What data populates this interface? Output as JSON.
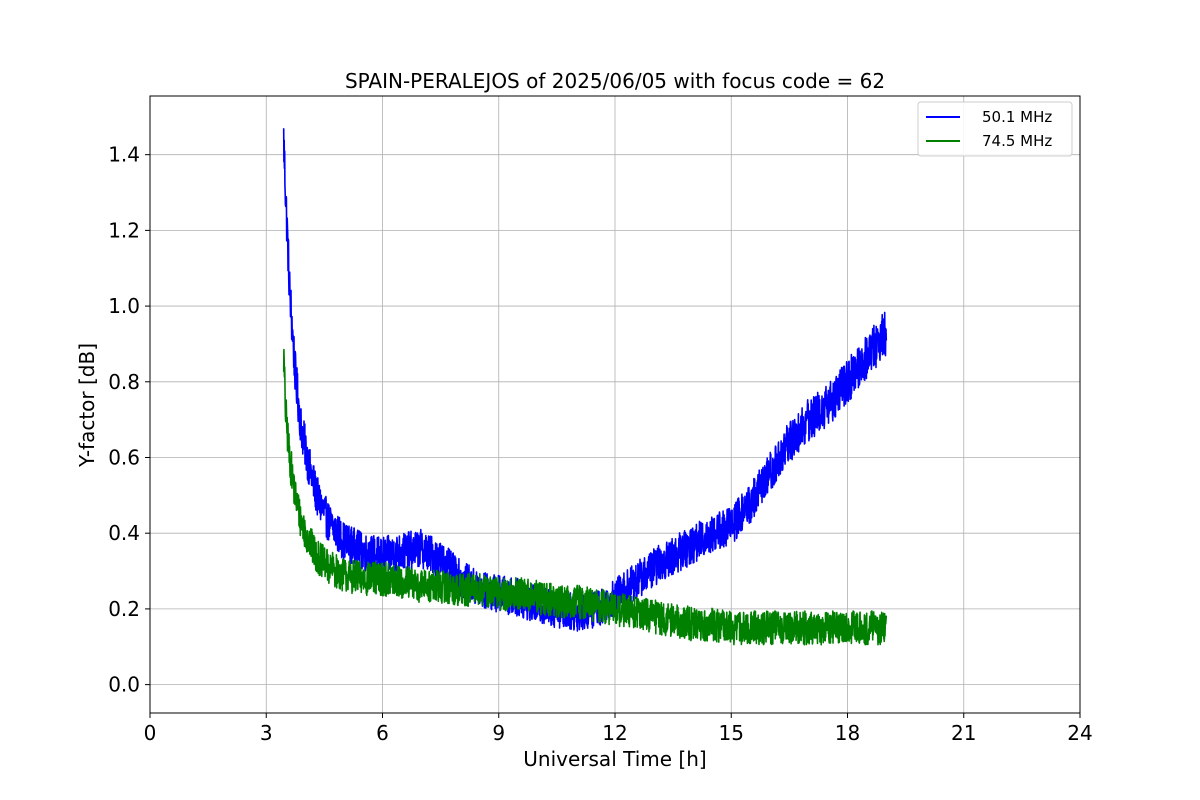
{
  "chart_data": {
    "type": "line",
    "title": "SPAIN-PERALEJOS of 2025/06/05 with focus code = 62",
    "xlabel": "Universal Time [h]",
    "ylabel": "Y-factor [dB]",
    "xlim": [
      0,
      24
    ],
    "ylim": [
      -0.075,
      1.555
    ],
    "xticks": [
      0,
      3,
      6,
      9,
      12,
      15,
      18,
      21,
      24
    ],
    "yticks": [
      0.0,
      0.2,
      0.4,
      0.6,
      0.8,
      1.0,
      1.2,
      1.4
    ],
    "xtick_labels": [
      "0",
      "3",
      "6",
      "9",
      "12",
      "15",
      "18",
      "21",
      "24"
    ],
    "ytick_labels": [
      "0.0",
      "0.2",
      "0.4",
      "0.6",
      "0.8",
      "1.0",
      "1.2",
      "1.4"
    ],
    "grid": true,
    "legend_position": "upper right",
    "series": [
      {
        "name": "50.1 MHz",
        "color": "#0000ff",
        "noise": 0.05,
        "x": [
          3.45,
          3.5,
          3.6,
          3.75,
          3.9,
          4.1,
          4.3,
          4.6,
          5.0,
          5.5,
          6.0,
          6.5,
          7.0,
          7.5,
          8.0,
          8.5,
          9.0,
          9.5,
          10.0,
          10.5,
          11.0,
          11.5,
          12.0,
          12.5,
          13.0,
          13.5,
          14.0,
          14.5,
          15.0,
          15.5,
          16.0,
          16.5,
          17.0,
          17.5,
          18.0,
          18.5,
          19.0
        ],
        "y": [
          1.44,
          1.3,
          1.05,
          0.82,
          0.68,
          0.58,
          0.5,
          0.43,
          0.38,
          0.35,
          0.34,
          0.35,
          0.36,
          0.33,
          0.28,
          0.25,
          0.24,
          0.23,
          0.21,
          0.2,
          0.19,
          0.2,
          0.23,
          0.27,
          0.31,
          0.34,
          0.37,
          0.4,
          0.42,
          0.48,
          0.56,
          0.64,
          0.7,
          0.74,
          0.8,
          0.87,
          0.93
        ]
      },
      {
        "name": "74.5 MHz",
        "color": "#008000",
        "noise": 0.045,
        "x": [
          3.45,
          3.5,
          3.6,
          3.75,
          3.9,
          4.1,
          4.3,
          4.6,
          5.0,
          5.5,
          6.0,
          6.5,
          7.0,
          7.5,
          8.0,
          8.5,
          9.0,
          9.5,
          10.0,
          10.5,
          11.0,
          11.5,
          12.0,
          12.5,
          13.0,
          13.5,
          14.0,
          14.5,
          15.0,
          15.5,
          16.0,
          16.5,
          17.0,
          17.5,
          18.0,
          18.5,
          19.0
        ],
        "y": [
          0.87,
          0.72,
          0.6,
          0.5,
          0.43,
          0.38,
          0.34,
          0.31,
          0.29,
          0.28,
          0.28,
          0.27,
          0.26,
          0.26,
          0.25,
          0.25,
          0.24,
          0.24,
          0.23,
          0.22,
          0.22,
          0.21,
          0.2,
          0.19,
          0.18,
          0.17,
          0.16,
          0.16,
          0.15,
          0.15,
          0.15,
          0.15,
          0.15,
          0.15,
          0.15,
          0.15,
          0.15
        ]
      }
    ]
  }
}
